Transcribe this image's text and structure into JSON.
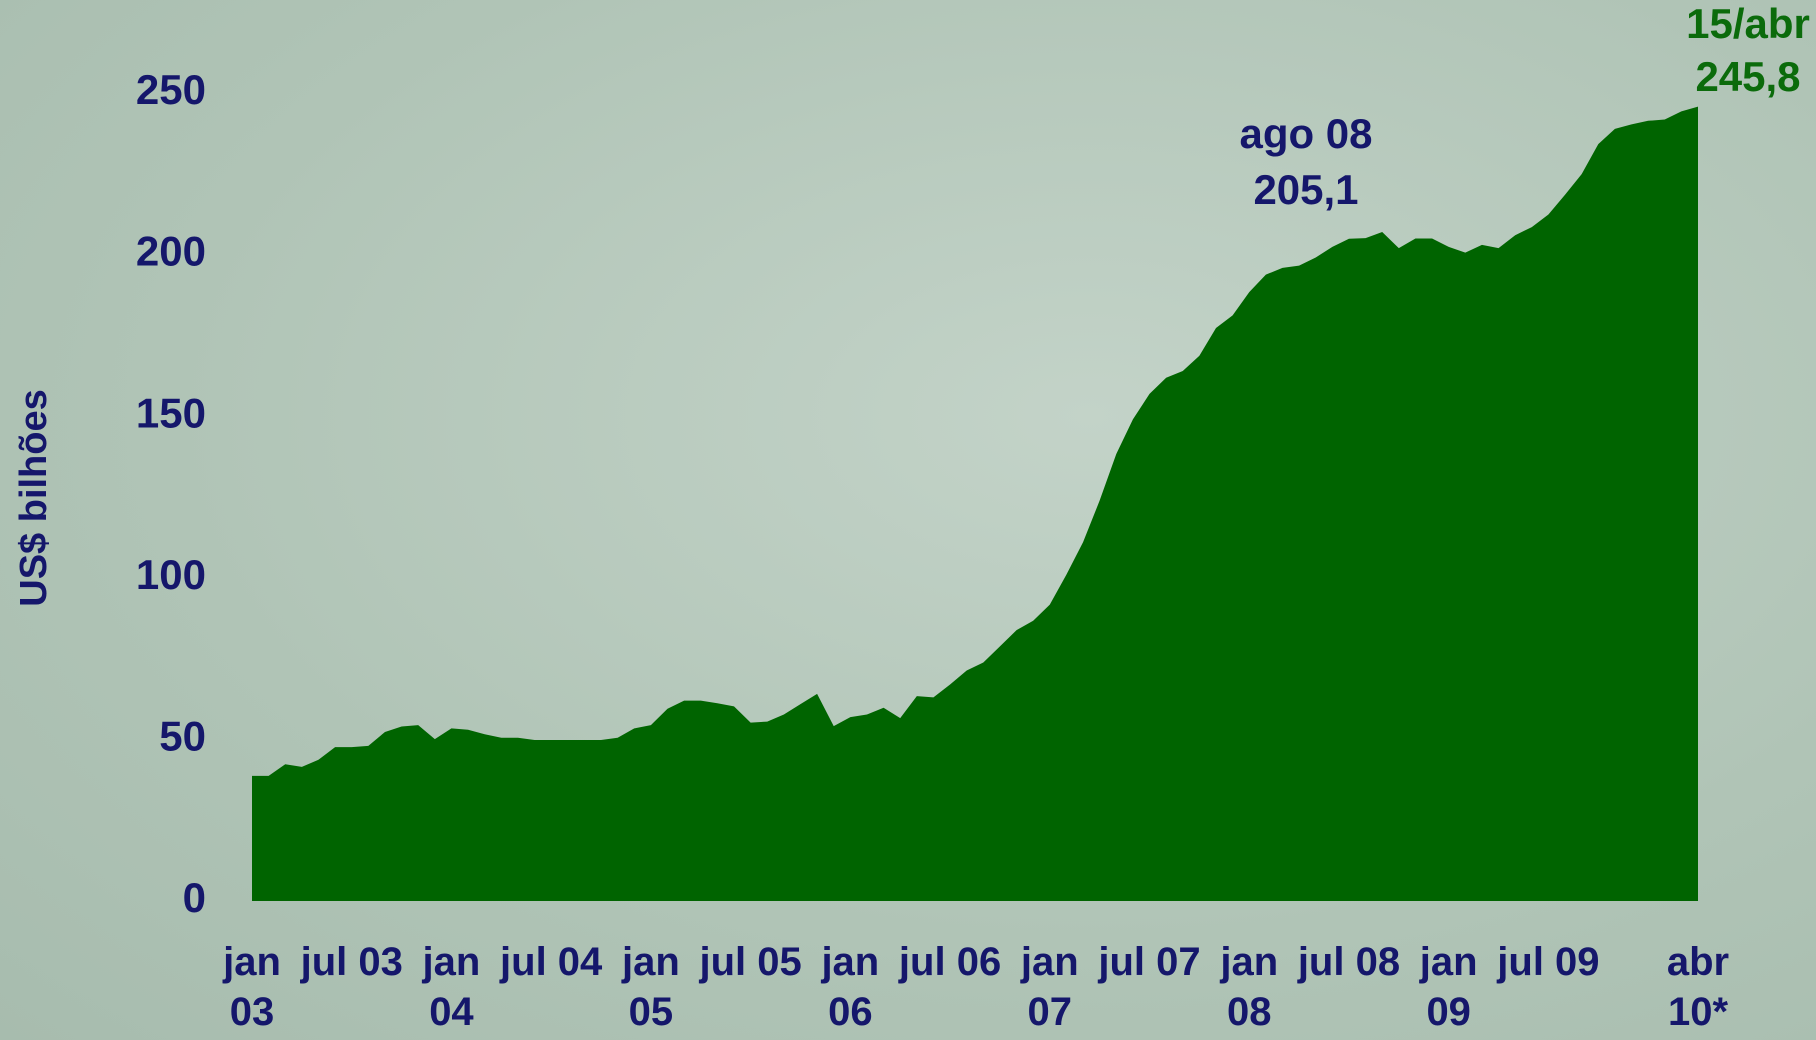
{
  "chart_data": {
    "type": "area",
    "y_label": "US$ bilhões",
    "categories": [
      "jan 03",
      null,
      null,
      null,
      null,
      null,
      "jul 03",
      null,
      null,
      null,
      null,
      null,
      "jan 04",
      null,
      null,
      null,
      null,
      null,
      "jul 04",
      null,
      null,
      null,
      null,
      null,
      "jan 05",
      null,
      null,
      null,
      null,
      null,
      "jul 05",
      null,
      null,
      null,
      null,
      null,
      "jan 06",
      null,
      null,
      null,
      null,
      null,
      "jul 06",
      null,
      null,
      null,
      null,
      null,
      "jan 07",
      null,
      null,
      null,
      null,
      null,
      "jul 07",
      null,
      null,
      null,
      null,
      null,
      "jan 08",
      null,
      null,
      null,
      null,
      null,
      "jul 08",
      null,
      null,
      null,
      null,
      null,
      "jan 09",
      null,
      null,
      null,
      null,
      null,
      "jul 09",
      null,
      null,
      null,
      null,
      null,
      null,
      null,
      null,
      "abr 10*"
    ],
    "values": [
      38.7,
      38.7,
      42.3,
      41.5,
      43.7,
      47.6,
      47.6,
      48,
      52.3,
      54,
      54.4,
      50.1,
      53.4,
      53,
      51.6,
      50.5,
      50.5,
      49.8,
      49.8,
      49.8,
      49.8,
      49.8,
      50.5,
      53.4,
      54.4,
      59.5,
      62,
      62,
      61.2,
      60.2,
      55.2,
      55.5,
      57.7,
      60.9,
      64.1,
      54.1,
      56.9,
      57.7,
      59.8,
      56.6,
      63.4,
      63,
      67,
      71.3,
      73.8,
      78.8,
      83.8,
      86.7,
      91.7,
      101,
      111,
      123.9,
      138.3,
      149,
      156.9,
      161.9,
      164,
      168.7,
      177.3,
      181.2,
      188.4,
      193.8,
      195.9,
      196.6,
      199.1,
      202.4,
      204.9,
      205.1,
      207,
      202,
      205,
      205,
      202.4,
      200.6,
      203,
      202,
      206,
      208.5,
      212.4,
      218.5,
      224.9,
      234.2,
      238.9,
      240.3,
      241.4,
      241.8,
      244.3,
      245.8
    ],
    "value_labels": [
      null,
      null,
      null,
      null,
      null,
      null,
      null,
      null,
      null,
      null,
      null,
      null,
      null,
      null,
      null,
      null,
      null,
      null,
      null,
      null,
      null,
      null,
      null,
      null,
      null,
      null,
      null,
      null,
      null,
      null,
      null,
      null,
      null,
      null,
      null,
      null,
      null,
      null,
      null,
      null,
      null,
      null,
      null,
      null,
      null,
      null,
      null,
      null,
      null,
      null,
      null,
      null,
      null,
      null,
      null,
      null,
      null,
      null,
      null,
      null,
      null,
      null,
      null,
      null,
      null,
      null,
      null,
      "205,1",
      null,
      null,
      null,
      null,
      null,
      null,
      null,
      null,
      null,
      null,
      null,
      null,
      null,
      null,
      null,
      null,
      null,
      null,
      null,
      "245,8"
    ],
    "annotations": [
      "ago 08",
      "15/abr"
    ],
    "annotation_colors": [
      "#15176b",
      "#0b6b0b"
    ],
    "color": "#006400",
    "ylim": [
      0,
      250
    ],
    "yticks": [
      0,
      50,
      100,
      150,
      200,
      250
    ],
    "grid": false
  }
}
